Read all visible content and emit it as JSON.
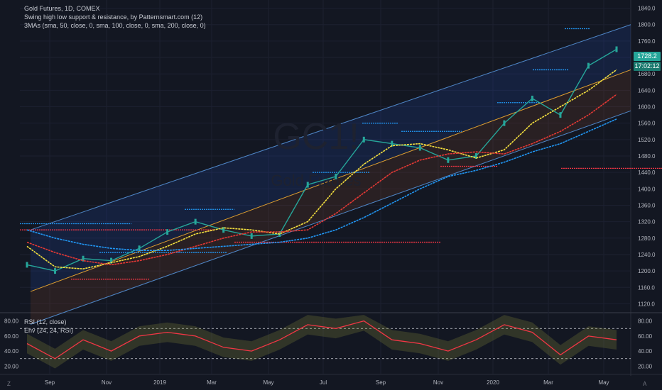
{
  "header": {
    "symbol_line": "Gold Futures, 1D, COMEX",
    "indicator1": "Swing high low support & resistance, by Patternsmart.com (12)",
    "indicator2": "3MAs (sma, 50, close, 0, sma, 100, close, 0, sma, 200, close, 0)",
    "watermark_symbol": "GC1!",
    "watermark_desc": "Gold Futures"
  },
  "price_axis": {
    "last_price": "1728.2",
    "countdown": "17:02:12",
    "last_price_color": "#26a69a",
    "ticks": [
      "1840.0",
      "1800.0",
      "1760.0",
      "1720.0",
      "1680.0",
      "1640.0",
      "1600.0",
      "1560.0",
      "1520.0",
      "1480.0",
      "1440.0",
      "1400.0",
      "1360.0",
      "1320.0",
      "1280.0",
      "1240.0",
      "1200.0",
      "1160.0",
      "1120.0"
    ]
  },
  "rsi_panel": {
    "label1": "RSI (12, close)",
    "label2": "Env (24, 24, RSI)",
    "ticks": [
      "80.00",
      "60.00",
      "40.00",
      "20.00"
    ],
    "line_color": "#f23645",
    "upper_dash": 70,
    "lower_dash": 30
  },
  "time_axis": {
    "labels": [
      "Sep",
      "Nov",
      "2019",
      "Mar",
      "May",
      "Jul",
      "Sep",
      "Nov",
      "2020",
      "Mar",
      "May"
    ]
  },
  "footer": {
    "tz": "Z",
    "scale": "A"
  },
  "chart_data": {
    "type": "line",
    "title": "Gold Futures, 1D, COMEX",
    "ylim": [
      1100,
      1860
    ],
    "x": [
      "2018-08",
      "2018-09",
      "2018-10",
      "2018-11",
      "2018-12",
      "2019-01",
      "2019-02",
      "2019-03",
      "2019-04",
      "2019-05",
      "2019-06",
      "2019-07",
      "2019-08",
      "2019-09",
      "2019-10",
      "2019-11",
      "2019-12",
      "2020-01",
      "2020-02",
      "2020-03",
      "2020-04",
      "2020-05"
    ],
    "series": [
      {
        "name": "Close",
        "color": "#26a69a",
        "values": [
          1215,
          1200,
          1230,
          1225,
          1255,
          1295,
          1320,
          1300,
          1285,
          1290,
          1410,
          1430,
          1520,
          1510,
          1500,
          1470,
          1480,
          1560,
          1620,
          1580,
          1700,
          1740
        ]
      },
      {
        "name": "SMA 50",
        "color": "#f5e13f",
        "values": [
          1260,
          1210,
          1205,
          1220,
          1235,
          1260,
          1290,
          1305,
          1300,
          1290,
          1320,
          1400,
          1460,
          1505,
          1510,
          1495,
          1475,
          1495,
          1560,
          1600,
          1640,
          1690
        ]
      },
      {
        "name": "SMA 100",
        "color": "#e53935",
        "values": [
          1270,
          1245,
          1225,
          1215,
          1225,
          1240,
          1260,
          1280,
          1295,
          1295,
          1300,
          1340,
          1390,
          1440,
          1470,
          1485,
          1490,
          1485,
          1510,
          1540,
          1580,
          1630
        ]
      },
      {
        "name": "SMA 200",
        "color": "#2196f3",
        "values": [
          1300,
          1280,
          1265,
          1255,
          1250,
          1250,
          1255,
          1260,
          1265,
          1270,
          1280,
          1300,
          1330,
          1365,
          1400,
          1430,
          1445,
          1465,
          1490,
          1510,
          1540,
          1570
        ]
      }
    ],
    "rsi": [
      50,
      30,
      55,
      40,
      60,
      65,
      60,
      45,
      40,
      55,
      75,
      70,
      80,
      55,
      50,
      40,
      55,
      75,
      65,
      35,
      60,
      55
    ]
  }
}
